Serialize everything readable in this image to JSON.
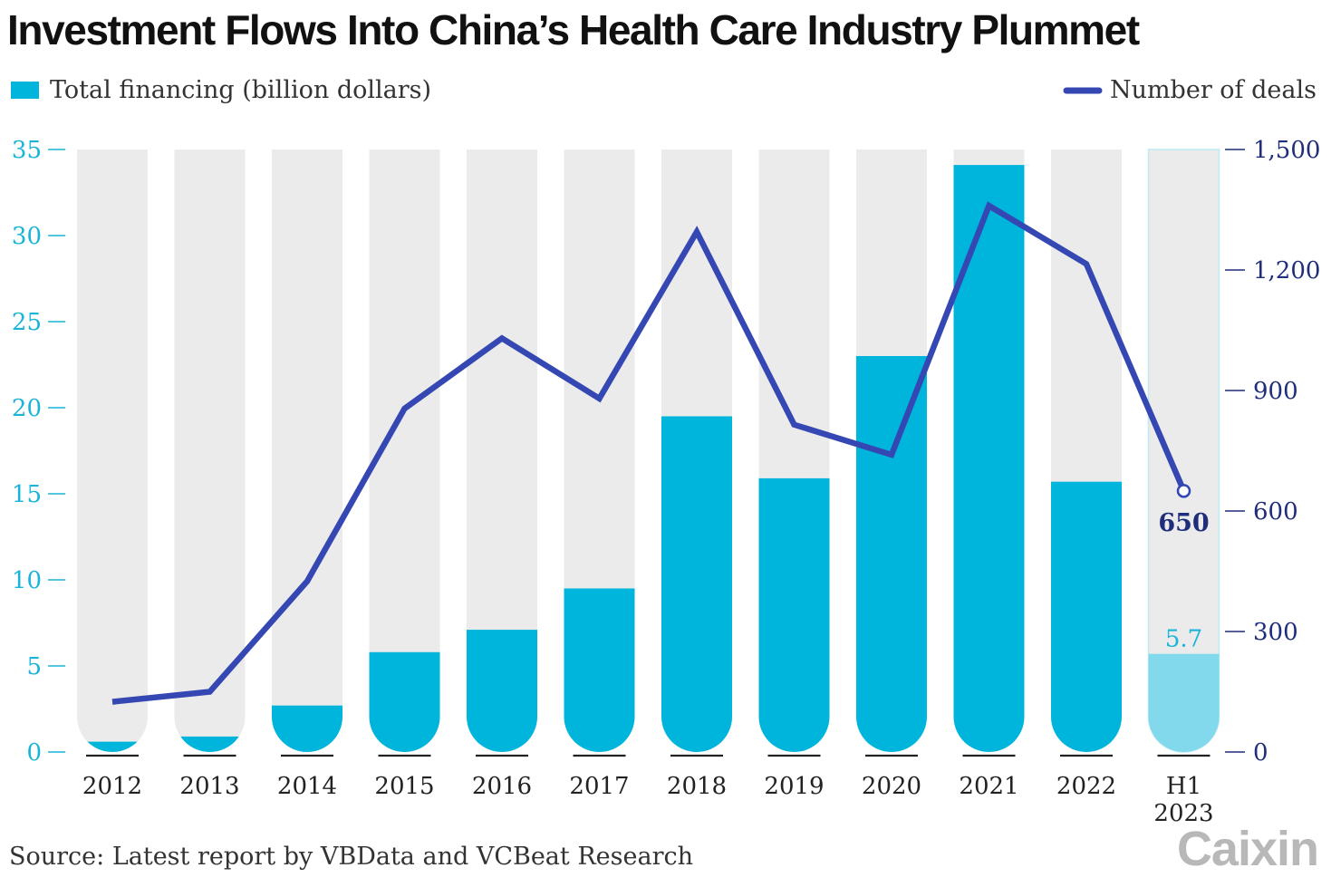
{
  "title": "Investment Flows Into China’s Health Care Industry Plummet",
  "legend": {
    "bars_label": "Total financing (billion dollars)",
    "line_label": "Number of deals"
  },
  "source": "Source: Latest report by VBData and VCBeat Research",
  "logo": "Caixin",
  "colors": {
    "bar": "#00b5dc",
    "bar_highlight": "#82d9ec",
    "track": "#ebebeb",
    "line": "#3547b3",
    "left_axis": "#1ab4d8",
    "right_axis": "#1f2d7a"
  },
  "chart_data": {
    "type": "bar",
    "title": "Investment Flows Into China’s Health Care Industry Plummet",
    "categories": [
      "2012",
      "2013",
      "2014",
      "2015",
      "2016",
      "2017",
      "2018",
      "2019",
      "2020",
      "2021",
      "2022",
      "H1 2023"
    ],
    "series": [
      {
        "name": "Total financing (billion dollars)",
        "type": "bar",
        "axis": "left",
        "values": [
          0.6,
          0.9,
          2.7,
          5.8,
          7.1,
          9.5,
          19.5,
          15.9,
          23.0,
          34.1,
          15.7,
          5.7
        ]
      },
      {
        "name": "Number of deals",
        "type": "line",
        "axis": "right",
        "values": [
          125,
          150,
          425,
          855,
          1030,
          880,
          1295,
          815,
          740,
          1360,
          1215,
          650
        ]
      }
    ],
    "left_axis": {
      "ylim": [
        0,
        35
      ],
      "ticks": [
        "0",
        "5",
        "10",
        "15",
        "20",
        "25",
        "30",
        "35"
      ]
    },
    "right_axis": {
      "ylim": [
        0,
        1500
      ],
      "ticks": [
        "0",
        "300",
        "600",
        "900",
        "1,200",
        "1,500"
      ]
    },
    "annotations": [
      {
        "category": "H1 2023",
        "series": "Total financing (billion dollars)",
        "text": "5.7"
      },
      {
        "category": "H1 2023",
        "series": "Number of deals",
        "text": "650"
      }
    ],
    "grid": false,
    "legend_position": "top"
  }
}
